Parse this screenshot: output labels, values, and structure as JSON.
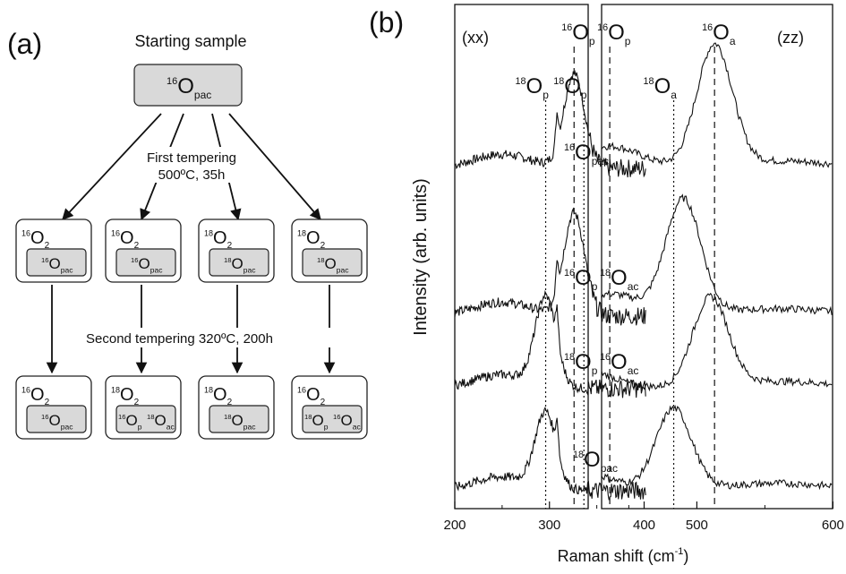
{
  "panel_a": {
    "label": "(a)",
    "title": "Starting sample",
    "start": {
      "iso": "16",
      "O": "O",
      "sub": "pac"
    },
    "step1": {
      "line1": "First tempering",
      "line2": "500ºC, 35h"
    },
    "step2": {
      "text": "Second tempering 320ºC, 200h"
    },
    "middle_boxes": [
      {
        "gas_iso": "16",
        "gas_sub": "2",
        "inner": [
          {
            "iso": "16",
            "sub": "pac"
          }
        ]
      },
      {
        "gas_iso": "16",
        "gas_sub": "2",
        "inner": [
          {
            "iso": "16",
            "sub": "pac"
          }
        ]
      },
      {
        "gas_iso": "18",
        "gas_sub": "2",
        "inner": [
          {
            "iso": "18",
            "sub": "pac"
          }
        ]
      },
      {
        "gas_iso": "18",
        "gas_sub": "2",
        "inner": [
          {
            "iso": "18",
            "sub": "pac"
          }
        ]
      }
    ],
    "bottom_boxes": [
      {
        "gas_iso": "16",
        "gas_sub": "2",
        "inner": [
          {
            "iso": "16",
            "sub": "pac"
          }
        ]
      },
      {
        "gas_iso": "18",
        "gas_sub": "2",
        "inner": [
          {
            "iso": "16",
            "sub": "p"
          },
          {
            "iso": "18",
            "sub": "ac"
          }
        ]
      },
      {
        "gas_iso": "18",
        "gas_sub": "2",
        "inner": [
          {
            "iso": "18",
            "sub": "pac"
          }
        ]
      },
      {
        "gas_iso": "16",
        "gas_sub": "2",
        "inner": [
          {
            "iso": "18",
            "sub": "p"
          },
          {
            "iso": "16",
            "sub": "ac"
          }
        ]
      }
    ]
  },
  "chart_data": {
    "type": "line",
    "panel_label": "(b)",
    "xlabel": "Raman shift (cm",
    "xlabel_sup": "-1",
    "xlabel_end": ")",
    "ylabel": "Intensity (arb. units)",
    "xlim": [
      200,
      600
    ],
    "xticks": [
      "200",
      "300",
      "400",
      "500",
      "600"
    ],
    "subpanels": [
      {
        "name": "xx",
        "label": "(xx)",
        "range": [
          200,
          410
        ]
      },
      {
        "name": "zz",
        "label": "(zz)",
        "range": [
          430,
          600
        ]
      }
    ],
    "reference_lines": [
      {
        "x": 296,
        "style": "dotted",
        "iso": "18",
        "sub": "p"
      },
      {
        "x": 326,
        "style": "dashed",
        "iso": "16",
        "sub": "p"
      },
      {
        "x": 417,
        "style": "dotted",
        "iso": "18",
        "sub": "p"
      },
      {
        "x": 436,
        "style": "dashed",
        "iso": "16",
        "sub": "p"
      },
      {
        "x": 483,
        "style": "dotted",
        "iso": "18",
        "sub": "a"
      },
      {
        "x": 513,
        "style": "dashed",
        "iso": "16",
        "sub": "a"
      }
    ],
    "series": [
      {
        "name": "16Opac",
        "labels": [
          {
            "iso": "16",
            "sub": "pac"
          }
        ],
        "xx_peak": 326,
        "zz_peaks": [
          436,
          513
        ],
        "zz_amp": [
          0.15,
          0.82
        ]
      },
      {
        "name": "16Op18Oac",
        "labels": [
          {
            "iso": "16",
            "sub": "p"
          },
          {
            "iso": "18",
            "sub": "ac"
          }
        ],
        "xx_peak": 326,
        "zz_peaks": [
          436,
          490
        ],
        "zz_amp": [
          0.15,
          0.78
        ]
      },
      {
        "name": "18Op16Oac",
        "labels": [
          {
            "iso": "18",
            "sub": "p"
          },
          {
            "iso": "16",
            "sub": "ac"
          }
        ],
        "xx_peak": 296,
        "zz_peaks": [
          417,
          510
        ],
        "zz_amp": [
          0.12,
          0.6
        ]
      },
      {
        "name": "18Opac",
        "labels": [
          {
            "iso": "18",
            "sub": "pac"
          }
        ],
        "xx_peak": 296,
        "zz_peaks": [
          417,
          483
        ],
        "zz_amp": [
          0.12,
          0.55
        ]
      }
    ]
  }
}
